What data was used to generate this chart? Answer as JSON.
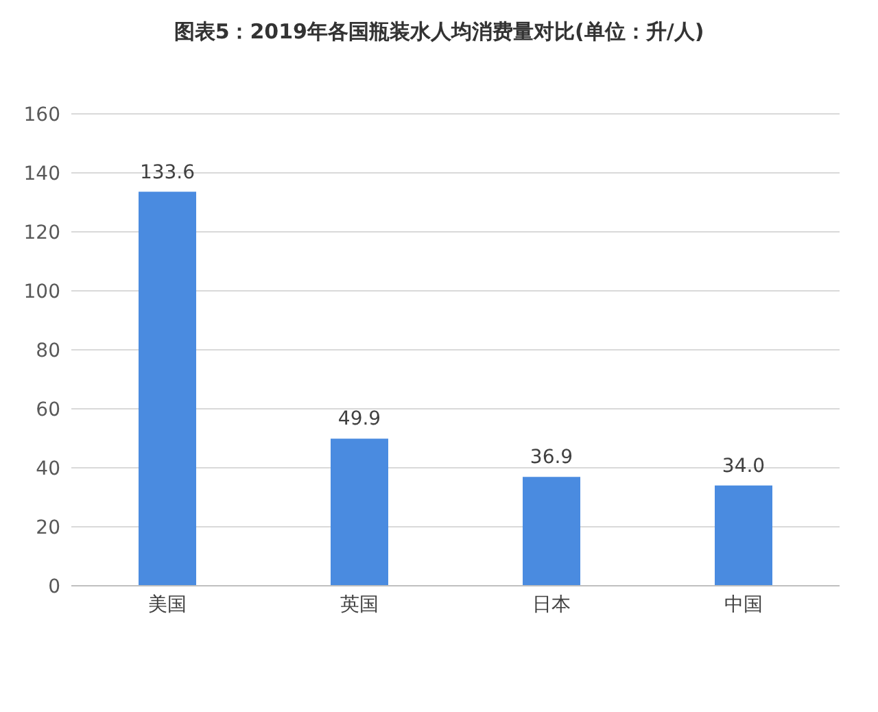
{
  "chart_data": {
    "type": "bar",
    "title": "图表5：2019年各国瓶装水人均消费量对比(单位：升/人)",
    "categories": [
      "美国",
      "英国",
      "日本",
      "中国"
    ],
    "values": [
      133.6,
      49.9,
      36.9,
      34.0
    ],
    "value_labels": [
      "133.6",
      "49.9",
      "36.9",
      "34.0"
    ],
    "color": "#4a8be0",
    "ylim": [
      0,
      160
    ],
    "yticks": [
      0,
      20,
      40,
      60,
      80,
      100,
      120,
      140,
      160
    ],
    "grid": "y"
  }
}
